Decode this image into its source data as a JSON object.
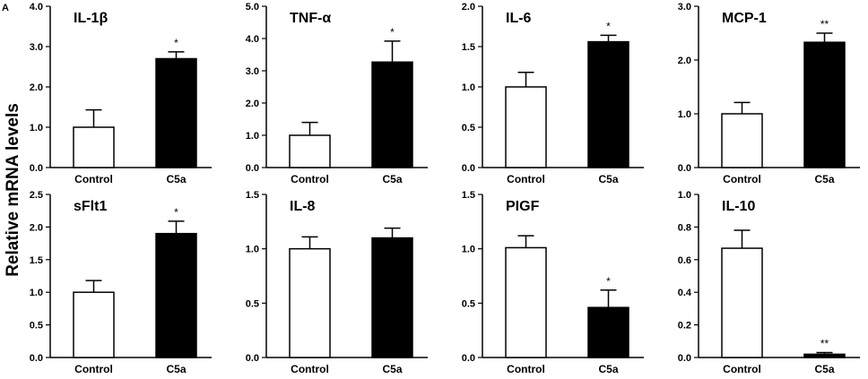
{
  "figure": {
    "panel_letter": "A",
    "ylabel": "Relative mRNA levels"
  },
  "chart_data": [
    {
      "type": "bar",
      "title": "IL-1β",
      "categories": [
        "Control",
        "C5a"
      ],
      "values": [
        1.0,
        2.7
      ],
      "errors": [
        0.43,
        0.17
      ],
      "significance": [
        "",
        "*"
      ],
      "ylim": [
        0,
        4.0
      ],
      "yticks": [
        "0.0",
        "1.0",
        "2.0",
        "3.0",
        "4.0"
      ],
      "colors": [
        "#ffffff",
        "#000000"
      ]
    },
    {
      "type": "bar",
      "title": "TNF-α",
      "categories": [
        "Control",
        "C5a"
      ],
      "values": [
        1.0,
        3.27
      ],
      "errors": [
        0.4,
        0.65
      ],
      "significance": [
        "",
        "*"
      ],
      "ylim": [
        0,
        5.0
      ],
      "yticks": [
        "0.0",
        "1.0",
        "2.0",
        "3.0",
        "4.0",
        "5.0"
      ],
      "colors": [
        "#ffffff",
        "#000000"
      ]
    },
    {
      "type": "bar",
      "title": "IL-6",
      "categories": [
        "Control",
        "C5a"
      ],
      "values": [
        1.0,
        1.56
      ],
      "errors": [
        0.18,
        0.08
      ],
      "significance": [
        "",
        "*"
      ],
      "ylim": [
        0,
        2.0
      ],
      "yticks": [
        "0.0",
        "0.5",
        "1.0",
        "1.5",
        "2.0"
      ],
      "colors": [
        "#ffffff",
        "#000000"
      ]
    },
    {
      "type": "bar",
      "title": "MCP-1",
      "categories": [
        "Control",
        "C5a"
      ],
      "values": [
        1.0,
        2.33
      ],
      "errors": [
        0.21,
        0.17
      ],
      "significance": [
        "",
        "**"
      ],
      "ylim": [
        0,
        3.0
      ],
      "yticks": [
        "0.0",
        "1.0",
        "2.0",
        "3.0"
      ],
      "colors": [
        "#ffffff",
        "#000000"
      ]
    },
    {
      "type": "bar",
      "title": "sFlt1",
      "categories": [
        "Control",
        "C5a"
      ],
      "values": [
        1.0,
        1.9
      ],
      "errors": [
        0.18,
        0.19
      ],
      "significance": [
        "",
        "*"
      ],
      "ylim": [
        0,
        2.5
      ],
      "yticks": [
        "0.0",
        "0.5",
        "1.0",
        "1.5",
        "2.0",
        "2.5"
      ],
      "colors": [
        "#ffffff",
        "#000000"
      ]
    },
    {
      "type": "bar",
      "title": "IL-8",
      "categories": [
        "Control",
        "C5a"
      ],
      "values": [
        1.0,
        1.1
      ],
      "errors": [
        0.11,
        0.09
      ],
      "significance": [
        "",
        ""
      ],
      "ylim": [
        0,
        1.5
      ],
      "yticks": [
        "0.0",
        "0.5",
        "1.0",
        "1.5"
      ],
      "colors": [
        "#ffffff",
        "#000000"
      ]
    },
    {
      "type": "bar",
      "title": "PIGF",
      "categories": [
        "Control",
        "C5a"
      ],
      "values": [
        1.01,
        0.46
      ],
      "errors": [
        0.11,
        0.16
      ],
      "significance": [
        "",
        "*"
      ],
      "ylim": [
        0,
        1.5
      ],
      "yticks": [
        "0.0",
        "0.5",
        "1.0",
        "1.5"
      ],
      "colors": [
        "#ffffff",
        "#000000"
      ]
    },
    {
      "type": "bar",
      "title": "IL-10",
      "categories": [
        "Control",
        "C5a"
      ],
      "values": [
        0.67,
        0.02
      ],
      "errors": [
        0.11,
        0.01
      ],
      "significance": [
        "",
        "**"
      ],
      "ylim": [
        0,
        1.0
      ],
      "yticks": [
        "0.0",
        "0.2",
        "0.4",
        "0.6",
        "0.8",
        "1.0"
      ],
      "colors": [
        "#ffffff",
        "#000000"
      ]
    }
  ]
}
